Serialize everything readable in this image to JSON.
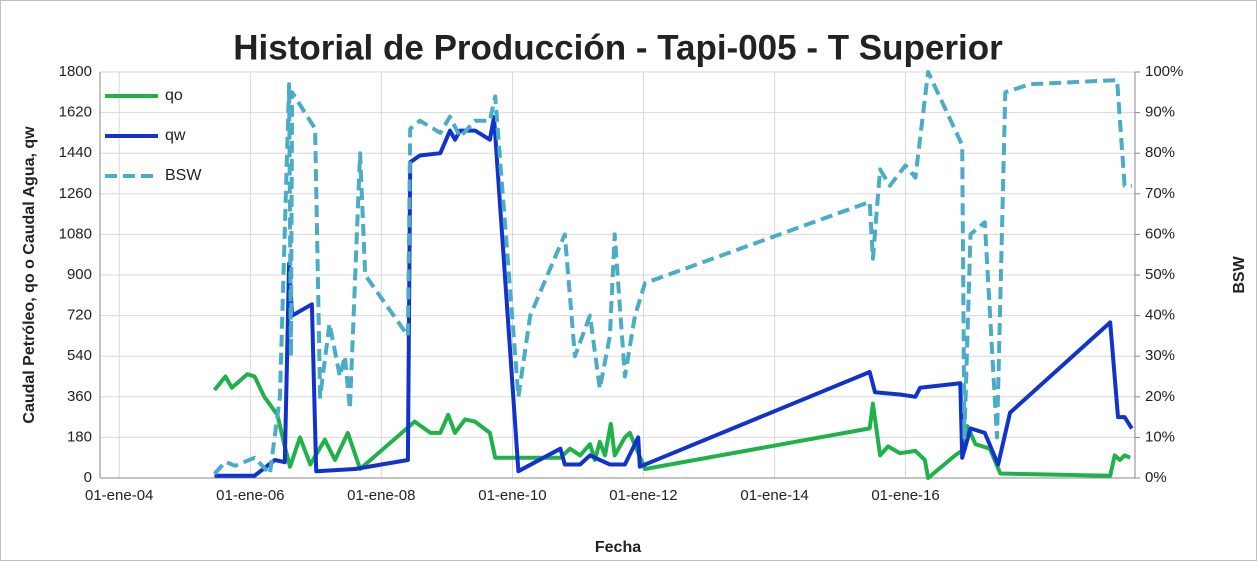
{
  "chart_data": {
    "type": "line",
    "title": "Historial de Producción - Tapi-005 - T Superior",
    "x_label": "Fecha",
    "y_label": "Caudal Petróleo, qo o Caudal Agua, qw",
    "y2_label": "BSW",
    "xlim": [
      "2003-09-16",
      "2019-07-03"
    ],
    "xticks": [
      {
        "value": "2004-01-01",
        "label": "01-ene-04"
      },
      {
        "value": "2006-01-01",
        "label": "01-ene-06"
      },
      {
        "value": "2008-01-01",
        "label": "01-ene-08"
      },
      {
        "value": "2010-01-01",
        "label": "01-ene-10"
      },
      {
        "value": "2012-01-01",
        "label": "01-ene-12"
      },
      {
        "value": "2014-01-01",
        "label": "01-ene-14"
      },
      {
        "value": "2016-01-01",
        "label": "01-ene-16"
      }
    ],
    "ylim": [
      0,
      1800
    ],
    "yticks": [
      0,
      180,
      360,
      540,
      720,
      900,
      1080,
      1260,
      1440,
      1620,
      1800
    ],
    "y2lim": [
      0,
      100
    ],
    "y2ticks": [
      {
        "value": 0,
        "label": "0%"
      },
      {
        "value": 10,
        "label": "10%"
      },
      {
        "value": 20,
        "label": "20%"
      },
      {
        "value": 30,
        "label": "30%"
      },
      {
        "value": 40,
        "label": "40%"
      },
      {
        "value": 50,
        "label": "50%"
      },
      {
        "value": 60,
        "label": "60%"
      },
      {
        "value": 70,
        "label": "70%"
      },
      {
        "value": 80,
        "label": "80%"
      },
      {
        "value": 90,
        "label": "90%"
      },
      {
        "value": 100,
        "label": "100%"
      }
    ],
    "grid": true,
    "legend": "upper left",
    "series": [
      {
        "name": "qo",
        "color": "#1fb24a",
        "dash": false,
        "x": [
          "2005-06-15",
          "2005-08-15",
          "2005-09-20",
          "2005-12-15",
          "2006-01-25",
          "2006-03-20",
          "2006-06-01",
          "2006-07-12",
          "2006-08-10",
          "2006-10-05",
          "2006-12-01",
          "2007-02-20",
          "2007-04-18",
          "2007-06-28",
          "2007-09-05",
          "2008-07-05",
          "2008-10-01",
          "2008-11-25",
          "2009-01-08",
          "2009-02-15",
          "2009-04-12",
          "2009-06-06",
          "2009-08-28",
          "2009-09-27",
          "2010-09-25",
          "2010-11-18",
          "2011-01-13",
          "2011-03-09",
          "2011-04-05",
          "2011-05-03",
          "2011-06-01",
          "2011-07-03",
          "2011-07-25",
          "2011-09-20",
          "2011-10-17",
          "2012-01-10",
          "2015-06-15",
          "2015-07-03",
          "2015-08-12",
          "2015-09-25",
          "2015-12-01",
          "2016-02-25",
          "2016-04-18",
          "2016-05-06",
          "2016-10-03",
          "2016-11-28",
          "2016-12-10",
          "2017-01-25",
          "2017-04-15",
          "2017-06-12",
          "2019-02-15",
          "2019-03-12",
          "2019-04-10",
          "2019-05-06",
          "2019-06-06"
        ],
        "values": [
          390,
          450,
          400,
          460,
          450,
          360,
          280,
          140,
          50,
          180,
          60,
          170,
          80,
          200,
          40,
          250,
          200,
          200,
          280,
          200,
          260,
          250,
          200,
          90,
          90,
          130,
          100,
          150,
          80,
          160,
          100,
          240,
          100,
          180,
          200,
          40,
          220,
          330,
          100,
          140,
          110,
          120,
          80,
          0,
          100,
          130,
          230,
          150,
          130,
          20,
          10,
          100,
          80,
          100,
          90
        ]
      },
      {
        "name": "qw",
        "color": "#1133cc",
        "dash": false,
        "x": [
          "2005-06-15",
          "2006-01-25",
          "2006-05-18",
          "2006-07-12",
          "2006-08-05",
          "2006-08-22",
          "2006-12-10",
          "2007-01-03",
          "2007-08-08",
          "2008-05-28",
          "2008-06-10",
          "2008-08-03",
          "2008-11-25",
          "2009-01-18",
          "2009-02-15",
          "2009-03-15",
          "2009-06-06",
          "2009-08-28",
          "2009-09-20",
          "2010-02-03",
          "2010-09-25",
          "2010-10-20",
          "2011-01-13",
          "2011-03-09",
          "2011-06-28",
          "2011-09-20",
          "2011-12-03",
          "2011-12-12",
          "2015-06-15",
          "2015-07-15",
          "2015-12-01",
          "2016-02-25",
          "2016-03-22",
          "2016-11-01",
          "2016-11-12",
          "2016-12-28",
          "2017-03-18",
          "2017-05-31",
          "2017-08-06",
          "2019-02-15",
          "2019-03-30",
          "2019-05-06",
          "2019-06-15"
        ],
        "values": [
          10,
          10,
          80,
          70,
          950,
          720,
          770,
          30,
          40,
          80,
          1400,
          1430,
          1440,
          1540,
          1500,
          1540,
          1540,
          1500,
          1600,
          30,
          130,
          60,
          60,
          100,
          60,
          60,
          180,
          50,
          470,
          380,
          370,
          360,
          400,
          420,
          90,
          220,
          200,
          60,
          290,
          690,
          270,
          270,
          220
        ]
      },
      {
        "name": "BSW",
        "color": "#4bacc6",
        "dash": true,
        "axis": "y2",
        "x": [
          "2005-06-15",
          "2005-08-15",
          "2005-10-08",
          "2006-01-25",
          "2006-04-20",
          "2006-06-15",
          "2006-08-05",
          "2006-08-15",
          "2006-08-22",
          "2006-12-28",
          "2007-01-25",
          "2007-03-18",
          "2007-05-15",
          "2007-06-12",
          "2007-07-10",
          "2007-09-05",
          "2007-10-03",
          "2008-05-28",
          "2008-06-10",
          "2008-08-03",
          "2008-11-25",
          "2009-01-18",
          "2009-03-15",
          "2009-06-06",
          "2009-08-28",
          "2009-09-27",
          "2010-02-03",
          "2010-04-10",
          "2010-10-20",
          "2010-12-15",
          "2011-03-09",
          "2011-05-03",
          "2011-06-28",
          "2011-07-25",
          "2011-09-20",
          "2011-11-15",
          "2012-01-10",
          "2015-06-15",
          "2015-07-03",
          "2015-08-12",
          "2015-10-06",
          "2016-01-01",
          "2016-02-25",
          "2016-05-06",
          "2016-11-12",
          "2016-11-24",
          "2016-12-28",
          "2017-03-18",
          "2017-05-25",
          "2017-07-10",
          "2017-11-25",
          "2019-03-25",
          "2019-05-06",
          "2019-06-15"
        ],
        "values": [
          1,
          4,
          3,
          5,
          1,
          20,
          97,
          30,
          95,
          86,
          20,
          38,
          25,
          30,
          17,
          80,
          50,
          35,
          86,
          88,
          85,
          89,
          84,
          88,
          88,
          94,
          20,
          40,
          60,
          30,
          40,
          22,
          35,
          60,
          25,
          40,
          48,
          68,
          54,
          76,
          72,
          77,
          74,
          100,
          82,
          10,
          60,
          63,
          10,
          95,
          97,
          98,
          72,
          72
        ]
      }
    ]
  }
}
